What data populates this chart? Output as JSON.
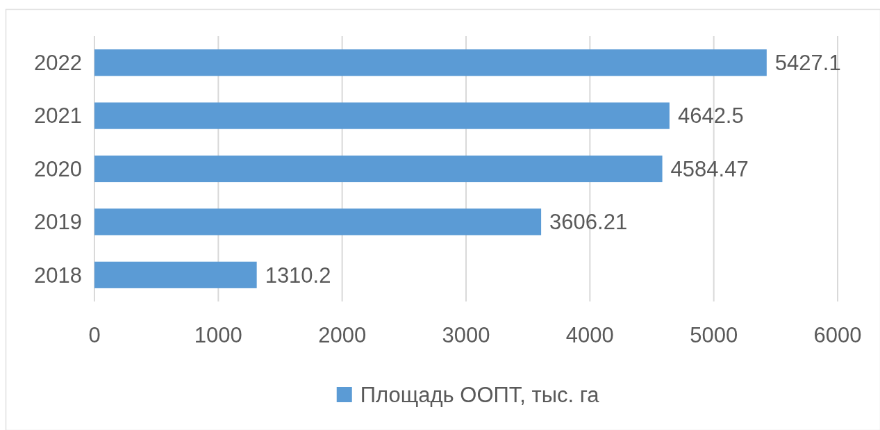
{
  "chart_data": {
    "type": "bar",
    "orientation": "horizontal",
    "categories": [
      "2022",
      "2021",
      "2020",
      "2019",
      "2018"
    ],
    "series": [
      {
        "name": "Площадь ООПТ, тыс. га",
        "color": "#5b9bd5",
        "values": [
          5427.1,
          4642.5,
          4584.47,
          3606.21,
          1310.2
        ]
      }
    ],
    "xlim": [
      0,
      6000
    ],
    "xticks": [
      0,
      1000,
      2000,
      3000,
      4000,
      5000,
      6000
    ],
    "grid": "x",
    "legend": "bottom",
    "data_labels": true
  }
}
